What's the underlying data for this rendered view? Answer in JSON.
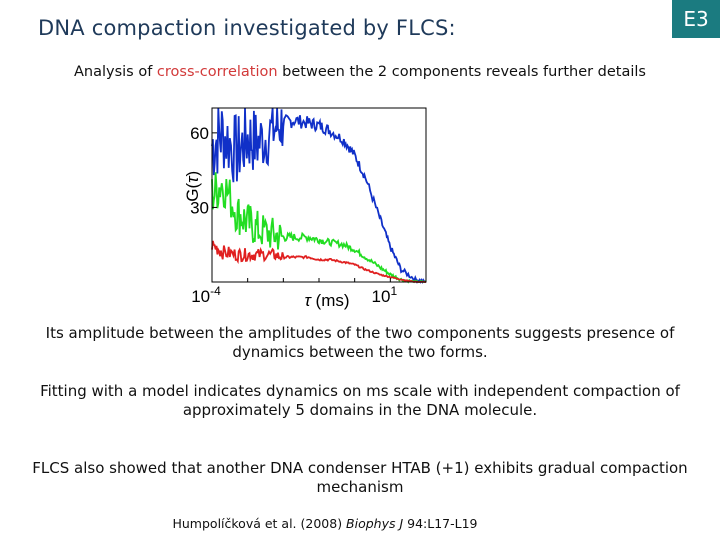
{
  "slide": {
    "title": "DNA compaction investigated by FLCS:",
    "badge": "E3",
    "subtitle_pre": "Analysis of ",
    "subtitle_highlight": "cross-correlation",
    "subtitle_post": " between the 2 components reveals further details",
    "paragraph1": "Its amplitude between the amplitudes of the two components suggests presence of dynamics between the two forms.",
    "paragraph2": "Fitting with a model indicates dynamics on ms scale with independent compaction of approximately 5 domains in the DNA molecule.",
    "paragraph3": "FLCS also showed that another DNA condenser HTAB (+1) exhibits gradual compaction mechanism",
    "ref_authors": "Humpolíčková et al. (2008) ",
    "ref_journal": "Biophys J",
    "ref_rest": " 94:L17-L19",
    "highlight_color": "#d23a3a",
    "badge_color": "#1b7b80"
  },
  "chart_data": {
    "type": "line",
    "title": "",
    "xlabel": "τ (ms)",
    "ylabel": "G(τ)",
    "xscale": "log",
    "xlim": [
      0.0001,
      100
    ],
    "ylim": [
      0,
      70
    ],
    "ytick_labels": [
      "30",
      "60"
    ],
    "yticks": [
      30,
      60
    ],
    "xtick_labels": [
      "10-4",
      "101"
    ],
    "grid": false,
    "legend": "none",
    "series": [
      {
        "color": "#1030c8",
        "x": [
          0.0001,
          0.0002,
          0.0005,
          0.001,
          0.002,
          0.005,
          0.01,
          0.02,
          0.05,
          0.1,
          0.2,
          0.5,
          1,
          2,
          5,
          10,
          20,
          50,
          100
        ],
        "y": [
          55,
          60,
          52,
          58,
          56,
          61,
          64,
          65,
          64,
          63,
          61,
          57,
          51,
          42,
          26,
          14,
          5,
          1,
          0
        ]
      },
      {
        "color": "#22dd22",
        "x": [
          0.0001,
          0.0002,
          0.0005,
          0.001,
          0.002,
          0.005,
          0.01,
          0.02,
          0.05,
          0.1,
          0.2,
          0.5,
          1,
          2,
          5,
          10,
          20,
          50,
          100
        ],
        "y": [
          35,
          40,
          28,
          24,
          21,
          19,
          18,
          18,
          18,
          17,
          16,
          15,
          13,
          10,
          6,
          3,
          1,
          0,
          0
        ]
      },
      {
        "color": "#e02020",
        "x": [
          0.0001,
          0.0002,
          0.0005,
          0.001,
          0.002,
          0.005,
          0.01,
          0.02,
          0.05,
          0.1,
          0.2,
          0.5,
          1,
          2,
          5,
          10,
          20,
          50,
          100
        ],
        "y": [
          15,
          12,
          11,
          11,
          11,
          11,
          10,
          10,
          10,
          9,
          9,
          8,
          7,
          5,
          3,
          2,
          1,
          0,
          0
        ]
      }
    ]
  }
}
